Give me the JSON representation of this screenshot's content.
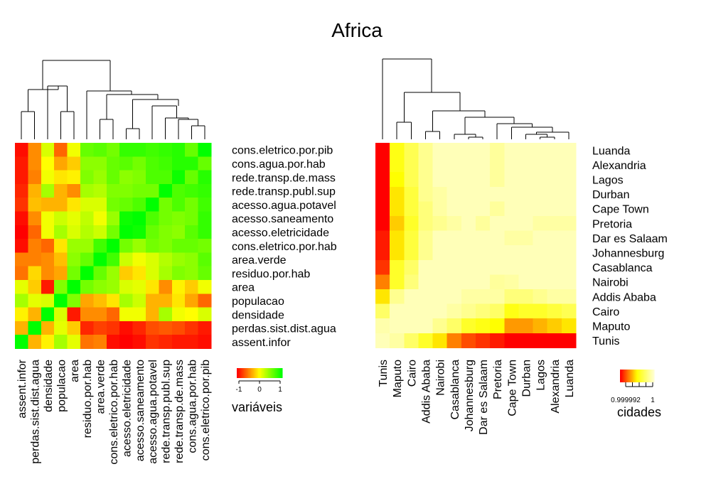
{
  "title": "Africa",
  "chart_data": [
    {
      "type": "heatmap",
      "name": "variables-correlation",
      "labels": [
        "assent.infor",
        "perdas.sist.dist.agua",
        "densidade",
        "populacao",
        "area",
        "residuo.por.hab",
        "area.verde",
        "cons.eletrico.por.hab",
        "acesso.eletricidade",
        "acesso.saneamento",
        "acesso.agua.potavel",
        "rede.transp.publ.sup",
        "rede.transp.de.mass",
        "cons.agua.por.hab",
        "cons.eletrico.por.pib"
      ],
      "row_labels_top_to_bottom": [
        "cons.eletrico.por.pib",
        "cons.agua.por.hab",
        "rede.transp.de.mass",
        "rede.transp.publ.sup",
        "acesso.agua.potavel",
        "acesso.saneamento",
        "acesso.eletricidade",
        "cons.eletrico.por.hab",
        "area.verde",
        "residuo.por.hab",
        "area",
        "populacao",
        "densidade",
        "perdas.sist.dist.agua",
        "assent.infor"
      ],
      "values": [
        [
          -0.95,
          -0.45,
          0.15,
          -0.6,
          0.05,
          0.6,
          0.65,
          0.55,
          0.8,
          0.8,
          0.75,
          0.8,
          0.85,
          0.6,
          1
        ],
        [
          -0.9,
          -0.45,
          0.0,
          -0.35,
          -0.2,
          0.45,
          0.45,
          0.6,
          0.65,
          0.55,
          0.7,
          0.75,
          0.85,
          0.85,
          0.6
        ],
        [
          -0.9,
          -0.5,
          0.05,
          -0.1,
          -0.05,
          0.5,
          0.4,
          0.6,
          0.45,
          0.5,
          0.7,
          0.7,
          0.95,
          0.6,
          0.85
        ],
        [
          -0.85,
          -0.3,
          0.35,
          -0.3,
          -0.45,
          0.35,
          0.3,
          0.5,
          0.5,
          0.55,
          0.55,
          1,
          0.7,
          0.75,
          0.8
        ],
        [
          -0.8,
          -0.25,
          -0.3,
          -0.3,
          -0.1,
          0.15,
          0.15,
          0.55,
          0.6,
          0.7,
          1,
          0.55,
          0.7,
          0.55,
          0.75
        ],
        [
          -0.95,
          -0.45,
          0.05,
          0.2,
          0.1,
          0.25,
          0.05,
          0.4,
          0.95,
          1,
          0.7,
          0.55,
          0.5,
          0.55,
          0.8
        ],
        [
          -1.0,
          -0.6,
          0.05,
          0.35,
          0.15,
          0.3,
          0.2,
          0.55,
          1,
          0.95,
          0.6,
          0.5,
          0.45,
          0.65,
          0.8
        ],
        [
          -0.95,
          -0.5,
          -0.6,
          -0.1,
          0.4,
          0.4,
          0.75,
          1,
          0.55,
          0.4,
          0.55,
          0.5,
          0.6,
          0.6,
          0.55
        ],
        [
          -0.5,
          -0.5,
          -0.45,
          -0.25,
          0.45,
          0.6,
          1,
          0.75,
          0.2,
          0.05,
          0.15,
          0.3,
          0.4,
          0.45,
          0.65
        ],
        [
          -0.55,
          -0.15,
          -0.45,
          -0.35,
          0.55,
          1,
          0.6,
          0.4,
          -0.2,
          -0.1,
          0.15,
          0.35,
          0.5,
          0.45,
          0.6
        ],
        [
          0.1,
          -0.2,
          -0.9,
          0.5,
          1,
          0.55,
          0.45,
          0.4,
          0.15,
          0.1,
          -0.1,
          -0.45,
          -0.05,
          -0.2,
          0.05
        ],
        [
          0.35,
          0.1,
          0.15,
          1,
          0.5,
          -0.35,
          -0.25,
          -0.1,
          0.35,
          0.2,
          -0.3,
          -0.3,
          -0.1,
          -0.35,
          -0.6
        ],
        [
          -0.05,
          -0.3,
          1,
          0.15,
          -0.9,
          -0.45,
          -0.45,
          -0.6,
          0.05,
          0.05,
          -0.3,
          0.35,
          0.05,
          0.0,
          0.15
        ],
        [
          -0.3,
          1,
          -0.3,
          0.1,
          -0.2,
          -0.85,
          -0.75,
          -0.8,
          -0.95,
          -0.85,
          -0.7,
          -0.65,
          -0.7,
          -0.8,
          -0.9
        ],
        [
          1,
          -0.3,
          -0.05,
          0.35,
          0.1,
          -0.55,
          -0.5,
          -0.95,
          -1.0,
          -0.95,
          -0.8,
          -0.85,
          -0.9,
          -0.9,
          -0.95
        ]
      ],
      "legend": {
        "title": "variáveis",
        "ticks": [
          "-1",
          "0",
          "1"
        ],
        "range": [
          -1,
          1
        ],
        "colors": [
          "#ff0000",
          "#ffff00",
          "#00ff00"
        ]
      }
    },
    {
      "type": "heatmap",
      "name": "cities-similarity",
      "labels": [
        "Tunis",
        "Maputo",
        "Cairo",
        "Addis Ababa",
        "Nairobi",
        "Casablanca",
        "Johannesburg",
        "Dar es Salaam",
        "Pretoria",
        "Cape Town",
        "Durban",
        "Lagos",
        "Alexandria",
        "Luanda"
      ],
      "row_labels_top_to_bottom": [
        "Luanda",
        "Alexandria",
        "Lagos",
        "Durban",
        "Cape Town",
        "Pretoria",
        "Dar es Salaam",
        "Johannesburg",
        "Casablanca",
        "Nairobi",
        "Addis Ababa",
        "Cairo",
        "Maputo",
        "Tunis"
      ],
      "values": [
        [
          0.0,
          0.55,
          0.7,
          0.85,
          0.95,
          0.95,
          0.95,
          0.95,
          0.88,
          0.95,
          0.95,
          0.95,
          0.95,
          0.95
        ],
        [
          0.0,
          0.55,
          0.7,
          0.85,
          0.95,
          0.95,
          0.95,
          0.95,
          0.88,
          0.95,
          0.95,
          0.95,
          0.95,
          0.95
        ],
        [
          0.0,
          0.5,
          0.7,
          0.85,
          0.95,
          0.95,
          0.95,
          0.95,
          0.88,
          0.95,
          0.95,
          0.95,
          0.95,
          0.95
        ],
        [
          0.0,
          0.45,
          0.65,
          0.85,
          0.9,
          0.95,
          0.95,
          0.95,
          0.95,
          0.95,
          0.95,
          0.95,
          0.95,
          0.95
        ],
        [
          0.0,
          0.45,
          0.65,
          0.8,
          0.9,
          0.95,
          0.95,
          0.95,
          0.88,
          0.95,
          0.95,
          0.95,
          0.95,
          0.95
        ],
        [
          0.0,
          0.4,
          0.6,
          0.8,
          0.85,
          0.9,
          0.95,
          0.88,
          0.95,
          0.95,
          0.95,
          0.9,
          0.9,
          0.9
        ],
        [
          0.05,
          0.45,
          0.65,
          0.85,
          0.95,
          0.95,
          0.95,
          0.95,
          0.95,
          0.9,
          0.9,
          0.95,
          0.95,
          0.95
        ],
        [
          0.05,
          0.45,
          0.65,
          0.85,
          0.95,
          0.95,
          0.95,
          0.95,
          0.95,
          0.95,
          0.95,
          0.95,
          0.95,
          0.95
        ],
        [
          0.1,
          0.6,
          0.75,
          0.95,
          0.95,
          0.95,
          0.95,
          0.95,
          0.95,
          0.95,
          0.95,
          0.95,
          0.95,
          0.95
        ],
        [
          0.25,
          0.6,
          0.8,
          0.95,
          0.95,
          0.95,
          0.95,
          0.95,
          0.88,
          0.9,
          0.95,
          0.95,
          0.95,
          0.95
        ],
        [
          0.45,
          0.85,
          0.95,
          0.95,
          0.95,
          0.95,
          0.9,
          0.9,
          0.9,
          0.8,
          0.8,
          0.85,
          0.9,
          0.9
        ],
        [
          0.75,
          0.95,
          0.95,
          0.95,
          0.95,
          0.9,
          0.85,
          0.8,
          0.75,
          0.55,
          0.6,
          0.6,
          0.65,
          0.7
        ],
        [
          0.92,
          0.95,
          0.95,
          0.95,
          0.85,
          0.75,
          0.6,
          0.55,
          0.5,
          0.3,
          0.3,
          0.35,
          0.4,
          0.45
        ],
        [
          0.95,
          0.9,
          0.75,
          0.6,
          0.45,
          0.25,
          0.15,
          0.1,
          0.05,
          0.0,
          0.0,
          0.0,
          0.0,
          0.0
        ]
      ],
      "legend": {
        "title": "cidades",
        "ticks": [
          "0.999992",
          "1"
        ],
        "range": [
          0.999992,
          1
        ],
        "colors": [
          "#ff0000",
          "#ffff00",
          "#ffffcc"
        ]
      }
    }
  ]
}
